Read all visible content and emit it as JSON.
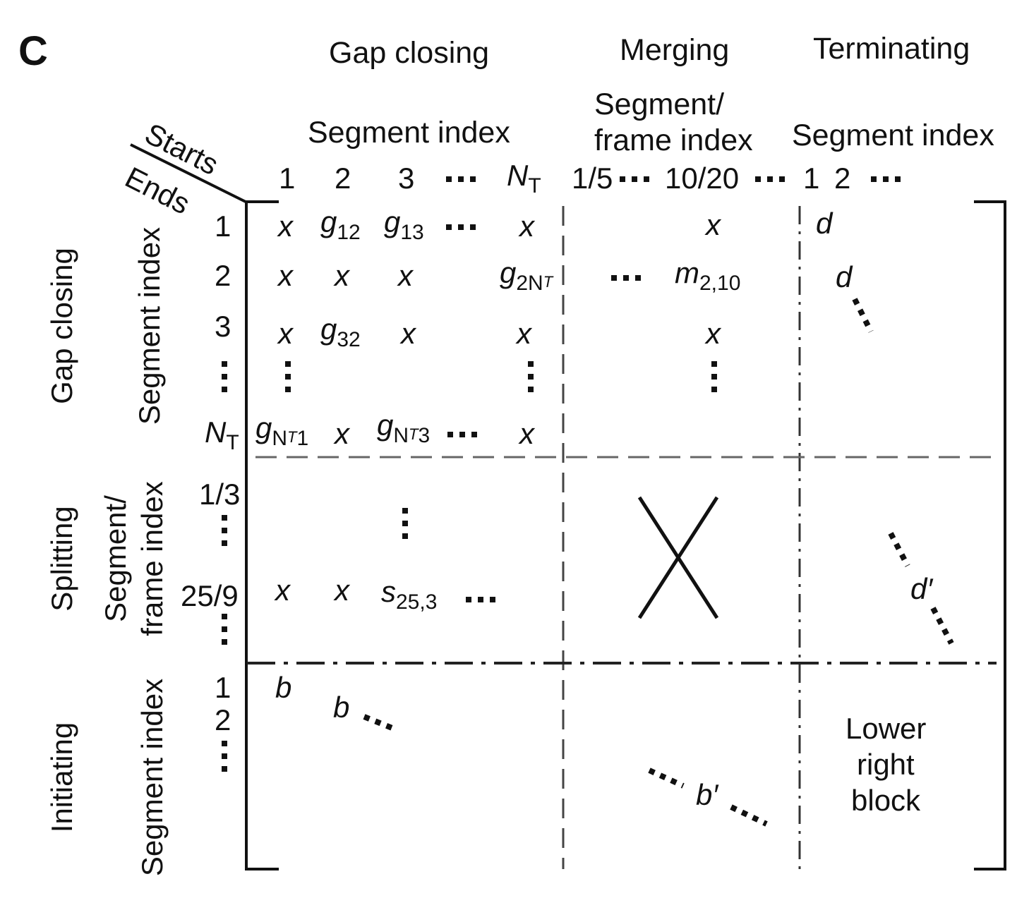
{
  "panel_label": "C",
  "column_groups": {
    "gap_closing": {
      "title": "Gap closing",
      "subtitle": "Segment index"
    },
    "merging": {
      "title": "Merging",
      "subtitle_line1": "Segment/",
      "subtitle_line2": "frame index"
    },
    "terminating": {
      "title": "Terminating",
      "subtitle": "Segment index"
    }
  },
  "corner": {
    "starts": "Starts",
    "ends": "Ends"
  },
  "column_indices": {
    "gap": [
      "1",
      "2",
      "3"
    ],
    "gap_last": {
      "base": "N",
      "sub": "T"
    },
    "merge": [
      "1/5",
      "10/20"
    ],
    "term": [
      "1",
      "2"
    ]
  },
  "row_groups": {
    "gap_closing": {
      "title": "Gap closing",
      "subtitle": "Segment index"
    },
    "splitting": {
      "title": "Splitting",
      "subtitle_line1": "Segment/",
      "subtitle_line2": "frame index"
    },
    "initiating": {
      "title": "Initiating",
      "subtitle": "Segment index"
    }
  },
  "row_indices": {
    "gap": [
      "1",
      "2",
      "3"
    ],
    "gap_last": {
      "base": "N",
      "sub": "T"
    },
    "split": [
      "1/3",
      "25/9"
    ],
    "init": [
      "1",
      "2"
    ]
  },
  "cells": {
    "x": "x",
    "g12": {
      "base": "g",
      "sub": "12"
    },
    "g13": {
      "base": "g",
      "sub": "13"
    },
    "g2NT": {
      "base": "g",
      "sub": "2N",
      "subsub": "T"
    },
    "m210": {
      "base": "m",
      "sub": "2,10"
    },
    "g32": {
      "base": "g",
      "sub": "32"
    },
    "gNT1": {
      "base": "g",
      "sub": "N",
      "subsub": "T",
      "tail": "1"
    },
    "gNT3": {
      "base": "g",
      "sub": "N",
      "subsub": "T",
      "tail": "3"
    },
    "s253": {
      "base": "s",
      "sub": "25,3"
    },
    "d": "d",
    "d_prime": "d′",
    "b": "b",
    "b_prime": "b′"
  },
  "lower_right_block": [
    "Lower",
    "right",
    "block"
  ]
}
